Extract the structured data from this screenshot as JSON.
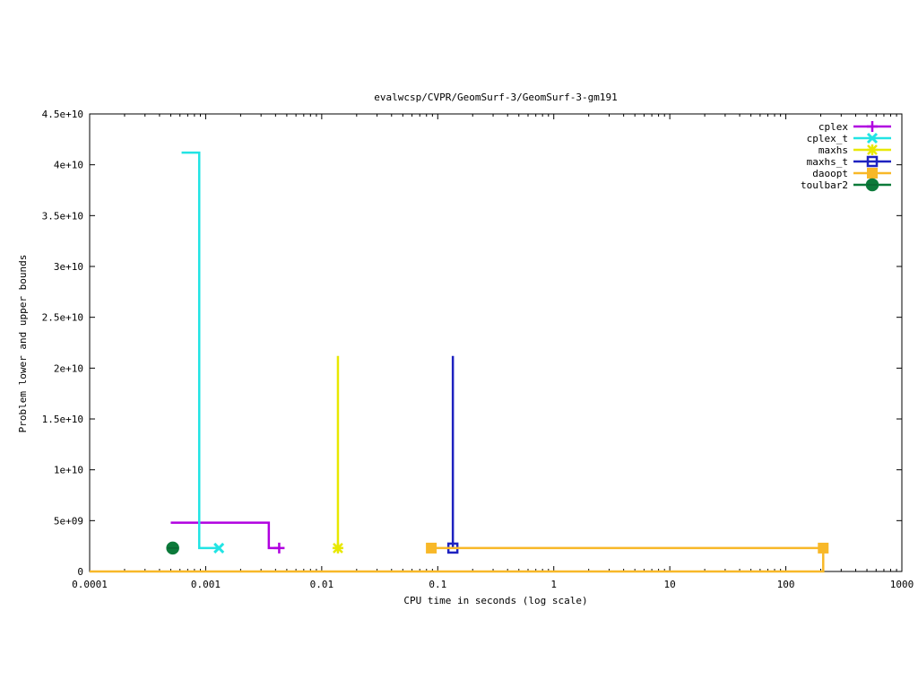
{
  "chart_data": {
    "type": "line",
    "title": "evalwcsp/CVPR/GeomSurf-3/GeomSurf-3-gm191",
    "xlabel": "CPU time in seconds (log scale)",
    "ylabel": "Problem lower and upper bounds",
    "x_scale": "log",
    "xlim": [
      0.0001,
      1000
    ],
    "ylim": [
      0,
      45000000000
    ],
    "x_ticks": [
      {
        "value": 0.0001,
        "label": "0.0001"
      },
      {
        "value": 0.001,
        "label": "0.001"
      },
      {
        "value": 0.01,
        "label": "0.01"
      },
      {
        "value": 0.1,
        "label": "0.1"
      },
      {
        "value": 1,
        "label": "1"
      },
      {
        "value": 10,
        "label": "10"
      },
      {
        "value": 100,
        "label": "100"
      },
      {
        "value": 1000,
        "label": "1000"
      }
    ],
    "y_ticks": [
      {
        "value": 0,
        "label": "0"
      },
      {
        "value": 5000000000,
        "label": "5e+09"
      },
      {
        "value": 10000000000,
        "label": "1e+10"
      },
      {
        "value": 15000000000,
        "label": "1.5e+10"
      },
      {
        "value": 20000000000,
        "label": "2e+10"
      },
      {
        "value": 25000000000,
        "label": "2.5e+10"
      },
      {
        "value": 30000000000,
        "label": "3e+10"
      },
      {
        "value": 35000000000,
        "label": "3.5e+10"
      },
      {
        "value": 40000000000,
        "label": "4e+10"
      },
      {
        "value": 45000000000,
        "label": "4.5e+10"
      }
    ],
    "legend_position": "top-right",
    "series": [
      {
        "name": "cplex",
        "color": "#b000e0",
        "marker": "plus",
        "points": [
          [
            0.0005,
            4800000000
          ],
          [
            0.0035,
            4800000000
          ],
          [
            0.0035,
            2300000000
          ],
          [
            0.0043,
            2300000000
          ]
        ],
        "marker_points": [
          [
            0.0043,
            2300000000
          ]
        ]
      },
      {
        "name": "cplex_t",
        "color": "#22e4e4",
        "marker": "cross",
        "points": [
          [
            0.00062,
            41200000000
          ],
          [
            0.00088,
            41200000000
          ],
          [
            0.00088,
            2300000000
          ],
          [
            0.0013,
            2300000000
          ]
        ],
        "marker_points": [
          [
            0.0013,
            2300000000
          ]
        ]
      },
      {
        "name": "maxhs",
        "color": "#e8e800",
        "marker": "star",
        "points": [
          [
            0.0138,
            21200000000
          ],
          [
            0.0138,
            2300000000
          ]
        ],
        "marker_points": [
          [
            0.0138,
            2300000000
          ]
        ]
      },
      {
        "name": "maxhs_t",
        "color": "#1e22c0",
        "marker": "square-open",
        "points": [
          [
            0.135,
            21200000000
          ],
          [
            0.135,
            2300000000
          ]
        ],
        "marker_points": [
          [
            0.135,
            2300000000
          ]
        ]
      },
      {
        "name": "daoopt",
        "color": "#f8b828",
        "marker": "square-filled",
        "points": [
          [
            0.088,
            2300000000
          ],
          [
            210,
            2300000000
          ]
        ],
        "marker_points": [
          [
            0.088,
            2300000000
          ],
          [
            210,
            2300000000
          ]
        ]
      },
      {
        "name": "toulbar2",
        "color": "#0c7a3a",
        "marker": "circle",
        "points": [],
        "marker_points": [
          [
            0.00052,
            2300000000
          ]
        ]
      }
    ],
    "baseline_series": {
      "color": "#f8b828",
      "points": [
        [
          0.0001,
          0
        ],
        [
          210,
          0
        ],
        [
          210,
          2300000000
        ]
      ]
    }
  }
}
